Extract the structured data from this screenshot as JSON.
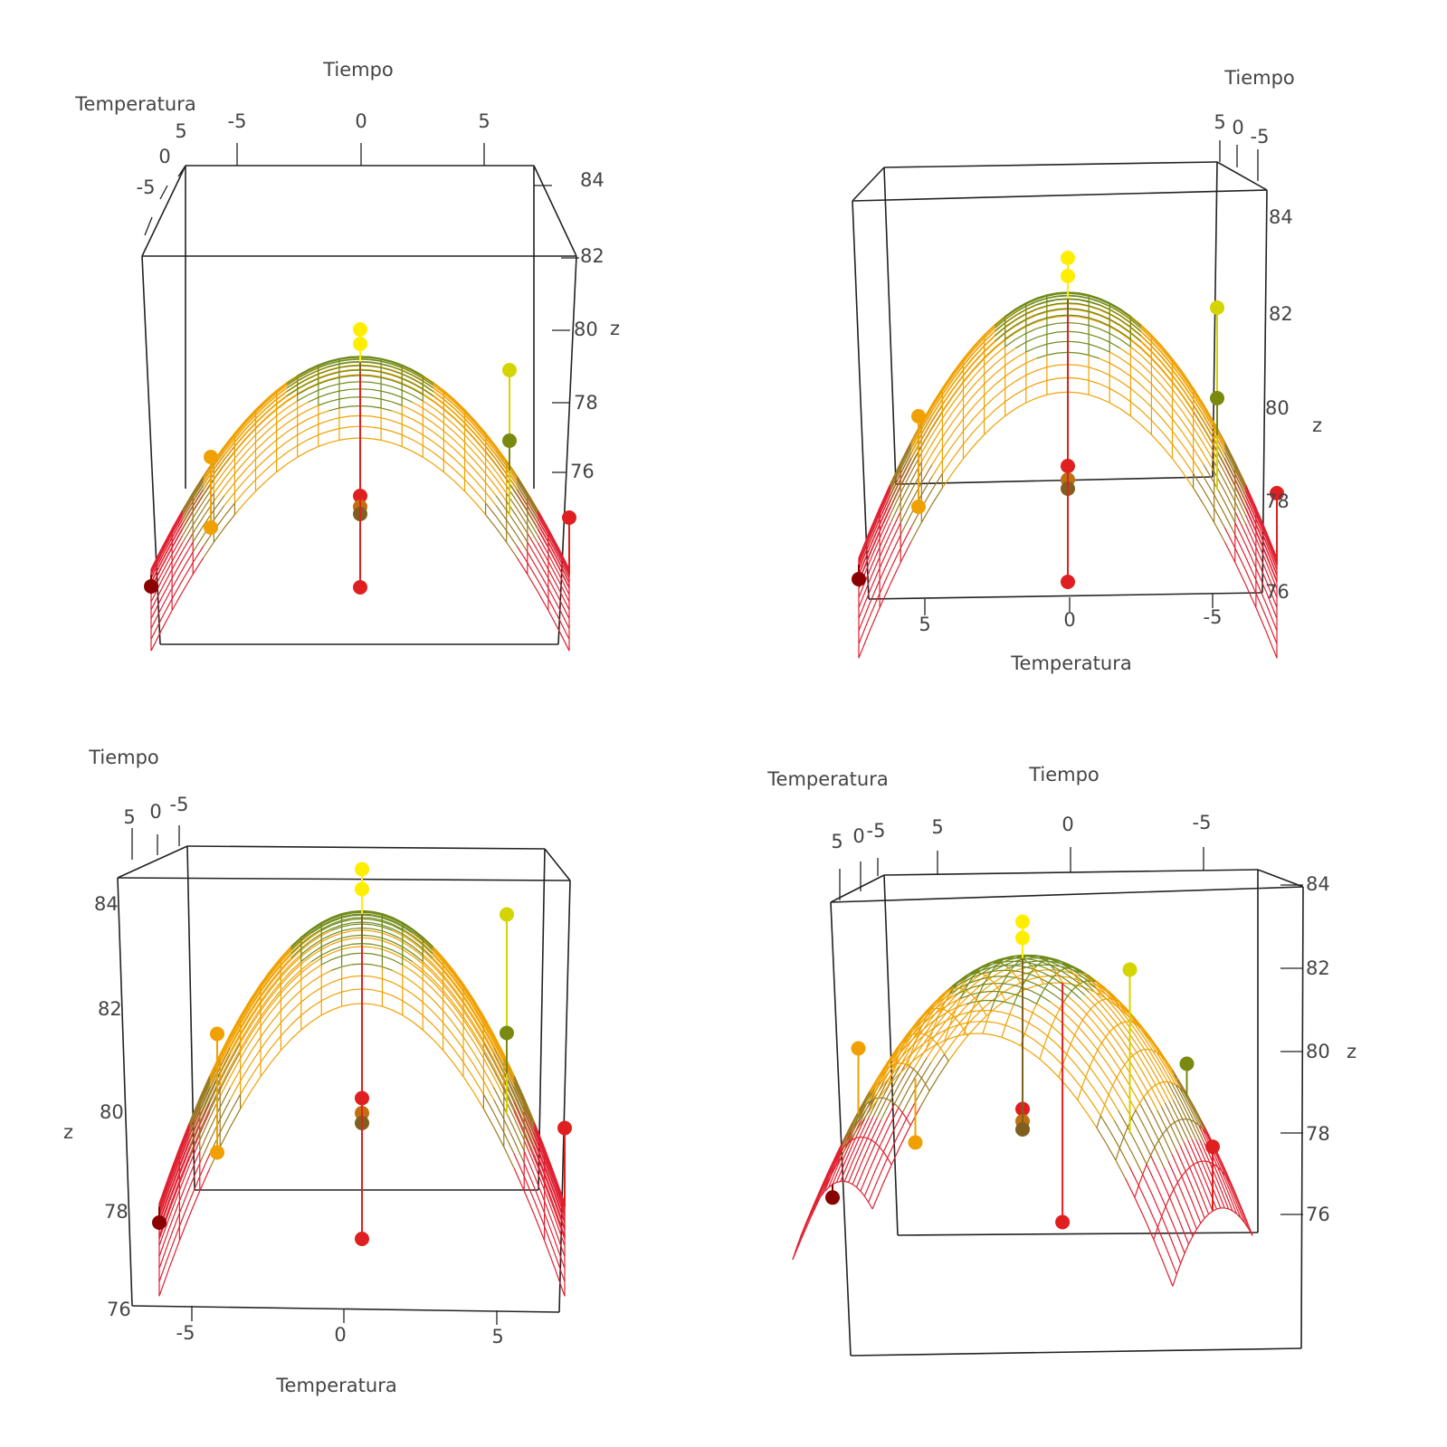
{
  "chart_data": [
    {
      "type": "surface3d",
      "view": "front",
      "axis_labels": {
        "x": "Temperatura",
        "y": "Tiempo",
        "z": "z"
      },
      "x_ticks": [
        "-5",
        "0",
        "5"
      ],
      "y_ticks": [
        "-5",
        "0",
        "5"
      ],
      "z_ticks": [
        "76",
        "78",
        "80",
        "82",
        "84"
      ],
      "zlim": [
        76,
        84
      ],
      "points": [
        {
          "x": 0,
          "y": 0,
          "z": 83.9,
          "color": "#ffee00"
        },
        {
          "x": 0,
          "y": 0,
          "z": 83.5,
          "color": "#ffee00"
        },
        {
          "x": 5,
          "y": 5,
          "z": 83.4,
          "color": "#d4d400"
        },
        {
          "x": -5,
          "y": 5,
          "z": 81.0,
          "color": "#f0a000"
        },
        {
          "x": 5,
          "y": -5,
          "z": 80.2,
          "color": "#7a8a10"
        },
        {
          "x": -5,
          "y": -5,
          "z": 77.8,
          "color": "#f0a000"
        },
        {
          "x": 0,
          "y": 0,
          "z": 79.3,
          "color": "#e02020"
        },
        {
          "x": 0,
          "y": 0,
          "z": 79.0,
          "color": "#c07010"
        },
        {
          "x": 0,
          "y": 0,
          "z": 78.8,
          "color": "#806020"
        },
        {
          "x": -7,
          "y": 0,
          "z": 76.8,
          "color": "#8b0000"
        },
        {
          "x": 7,
          "y": 0,
          "z": 78.7,
          "color": "#e02020"
        },
        {
          "x": 0,
          "y": -7,
          "z": 75.9,
          "color": "#e02020"
        }
      ]
    },
    {
      "type": "surface3d",
      "view": "left",
      "axis_labels": {
        "x": "Temperatura",
        "y": "Tiempo",
        "z": "z"
      },
      "x_ticks": [
        "5",
        "0",
        "-5"
      ],
      "y_ticks": [
        "5",
        "0",
        "-5"
      ],
      "z_ticks": [
        "76",
        "78",
        "80",
        "82",
        "84"
      ],
      "zlim": [
        76,
        84
      ],
      "points": []
    },
    {
      "type": "surface3d",
      "view": "right",
      "axis_labels": {
        "x": "Temperatura",
        "y": "Tiempo",
        "z": "z"
      },
      "x_ticks": [
        "-5",
        "0",
        "5"
      ],
      "y_ticks": [
        "5",
        "0",
        "-5"
      ],
      "z_ticks": [
        "76",
        "78",
        "80",
        "82",
        "84"
      ],
      "zlim": [
        76,
        84
      ],
      "points": []
    },
    {
      "type": "surface3d",
      "view": "back",
      "axis_labels": {
        "x": "Temperatura",
        "y": "Tiempo",
        "z": "z"
      },
      "x_ticks": [
        "5",
        "0",
        "-5"
      ],
      "y_ticks": [
        "5",
        "0",
        "-5"
      ],
      "z_ticks": [
        "76",
        "78",
        "80",
        "82",
        "84"
      ],
      "zlim": [
        76,
        84
      ],
      "points": []
    }
  ]
}
